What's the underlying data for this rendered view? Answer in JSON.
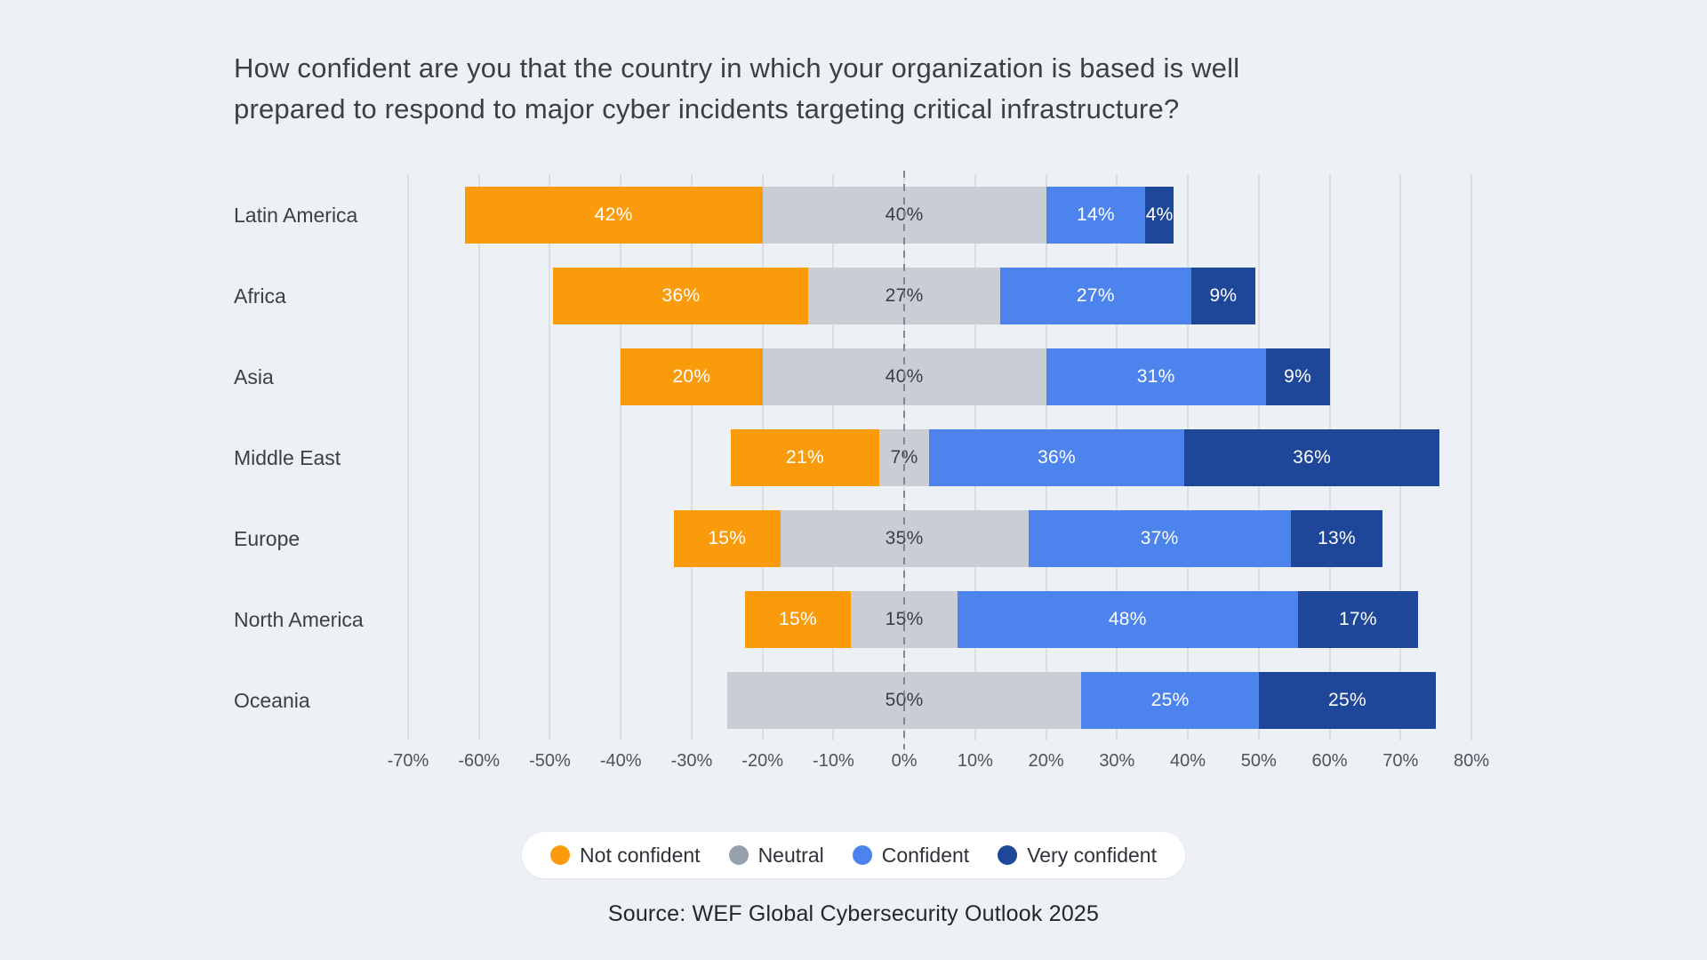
{
  "title": "How confident are you that the country in which your organization is based is well\nprepared to respond to major cyber incidents targeting critical infrastructure?",
  "source": "Source: WEF Global Cybersecurity Outlook 2025",
  "colors": {
    "background": "#EDF0F4",
    "not_confident": "#F99B0B",
    "neutral": "#C9CED5",
    "confident": "#4C83ED",
    "very_confident": "#1E4699",
    "neutral_legend_dot": "#97A1AD",
    "gridline": "#DBDFE5",
    "zero_line": "#7F858E",
    "bar_label_light": "#FFFFFF",
    "bar_label_dark": "#3A3E45"
  },
  "legend": [
    {
      "label": "Not confident",
      "key": "not_confident",
      "dot_color": "#F99B0B"
    },
    {
      "label": "Neutral",
      "key": "neutral",
      "dot_color": "#97A1AD"
    },
    {
      "label": "Confident",
      "key": "confident",
      "dot_color": "#4C83ED"
    },
    {
      "label": "Very confident",
      "key": "very_confident",
      "dot_color": "#1E4699"
    }
  ],
  "chart_data": {
    "type": "bar",
    "variant": "diverging-stacked-horizontal",
    "title": "How confident are you that the country in which your organization is based is well prepared to respond to major cyber incidents targeting critical infrastructure?",
    "categories": [
      "Latin America",
      "Africa",
      "Asia",
      "Middle East",
      "Europe",
      "North America",
      "Oceania"
    ],
    "series": [
      {
        "name": "Not confident",
        "key": "not_confident",
        "values": [
          42,
          36,
          20,
          21,
          15,
          15,
          0
        ]
      },
      {
        "name": "Neutral",
        "key": "neutral",
        "values": [
          40,
          27,
          40,
          7,
          35,
          15,
          50
        ]
      },
      {
        "name": "Confident",
        "key": "confident",
        "values": [
          14,
          27,
          31,
          36,
          37,
          48,
          25
        ]
      },
      {
        "name": "Very confident",
        "key": "very_confident",
        "values": [
          4,
          9,
          9,
          36,
          13,
          17,
          25
        ]
      }
    ],
    "value_suffix": "%",
    "neutral_centered_on_zero": true,
    "x_axis": {
      "min": -70,
      "max": 80,
      "tick_step": 10,
      "tick_labels": [
        "-70%",
        "-60%",
        "-50%",
        "-40%",
        "-30%",
        "-20%",
        "-10%",
        "0%",
        "10%",
        "20%",
        "30%",
        "40%",
        "50%",
        "60%",
        "70%",
        "80%"
      ]
    },
    "grid": true,
    "legend_position": "bottom"
  }
}
